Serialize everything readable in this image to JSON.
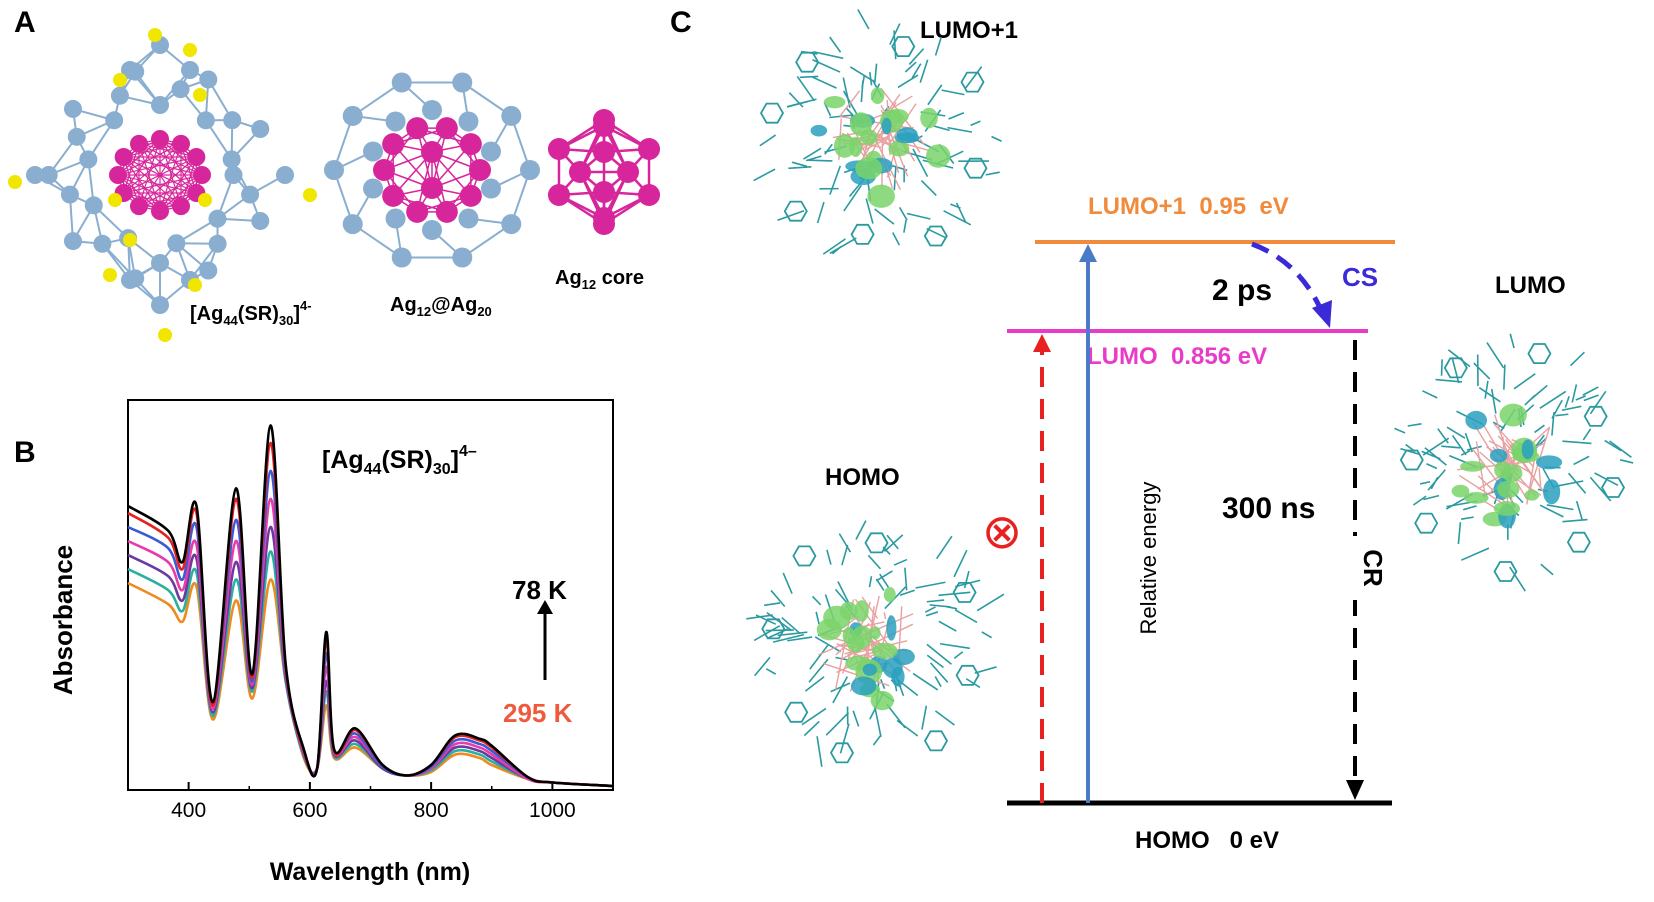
{
  "panel_a": {
    "letter": "A",
    "captions": {
      "cluster": {
        "prefix": "[Ag",
        "sub1": "44",
        "mid": "(SR)",
        "sub2": "30",
        "close": "]",
        "sup": "4-"
      },
      "shell": {
        "prefix": "Ag",
        "sub1": "12",
        "mid": "@Ag",
        "sub2": "20"
      },
      "core": {
        "prefix": "Ag",
        "sub1": "12",
        "mid": " core"
      }
    },
    "colors": {
      "silver_shell": "#8aaed0",
      "silver_core": "#d7269b",
      "sulfur": "#f0e600"
    }
  },
  "panel_b": {
    "letter": "B",
    "label": {
      "prefix": "[Ag",
      "sub1": "44",
      "mid": "(SR)",
      "sub2": "30",
      "close": "]",
      "sup": "4–"
    },
    "annotation_low": "78 K",
    "annotation_high": "295 K",
    "annotation_colors": {
      "low": "#000000",
      "high": "#f05a3c"
    }
  },
  "panel_c": {
    "letter": "C",
    "orbital_titles": {
      "lumo1": "LUMO+1",
      "lumo": "LUMO",
      "homo": "HOMO"
    },
    "levels": {
      "lumo1": {
        "label": "LUMO+1  0.95  eV",
        "energy_ev": 0.95,
        "color": "#f08a3c"
      },
      "lumo": {
        "label": "LUMO  0.856 eV",
        "energy_ev": 0.856,
        "color": "#e83cc8"
      },
      "homo": {
        "label": "HOMO   0 eV",
        "energy_ev": 0,
        "color": "#000000"
      }
    },
    "axis_label": "Relative energy",
    "transitions": {
      "cs_label": "CS",
      "cs_time": "2 ps",
      "cr_label": "CR",
      "cr_time": "300 ns",
      "forbidden_symbol": "⊗"
    },
    "colors": {
      "excitation": "#4a7ac8",
      "forbidden": "#e82020",
      "cs": "#3a2ad8",
      "cr": "#000000",
      "isosurface_pos": "#7ad46a",
      "isosurface_neg": "#2aa0c0",
      "ligand": "#2a9aa0",
      "frame": "#e8a0a0"
    }
  },
  "chart_data": {
    "type": "line",
    "title": "",
    "xlabel": "Wavelength (nm)",
    "ylabel": "Absorbance",
    "xlim": [
      300,
      1100
    ],
    "ylim": [
      0,
      1
    ],
    "x_ticks": [
      400,
      600,
      800,
      1000
    ],
    "peaks_nm": [
      366,
      413,
      478,
      535,
      627,
      675,
      840,
      900
    ],
    "temperature_range": [
      "295 K",
      "78 K"
    ],
    "series": [
      {
        "color": "#f08a1e",
        "values": [
          [
            300,
            0.58
          ],
          [
            366,
            0.52
          ],
          [
            390,
            0.47
          ],
          [
            413,
            0.57
          ],
          [
            440,
            0.19
          ],
          [
            478,
            0.53
          ],
          [
            505,
            0.25
          ],
          [
            535,
            0.59
          ],
          [
            560,
            0.3
          ],
          [
            590,
            0.08
          ],
          [
            612,
            0.05
          ],
          [
            627,
            0.23
          ],
          [
            640,
            0.08
          ],
          [
            675,
            0.11
          ],
          [
            720,
            0.05
          ],
          [
            760,
            0.03
          ],
          [
            800,
            0.04
          ],
          [
            840,
            0.09
          ],
          [
            880,
            0.08
          ],
          [
            900,
            0.06
          ],
          [
            960,
            0.02
          ],
          [
            1000,
            0.01
          ],
          [
            1100,
            0.0
          ]
        ]
      },
      {
        "color": "#2ab0a0",
        "values": [
          [
            300,
            0.62
          ],
          [
            366,
            0.56
          ],
          [
            390,
            0.5
          ],
          [
            413,
            0.61
          ],
          [
            440,
            0.2
          ],
          [
            478,
            0.59
          ],
          [
            505,
            0.27
          ],
          [
            535,
            0.67
          ],
          [
            560,
            0.3
          ],
          [
            590,
            0.085
          ],
          [
            612,
            0.05
          ],
          [
            627,
            0.27
          ],
          [
            640,
            0.085
          ],
          [
            675,
            0.12
          ],
          [
            720,
            0.05
          ],
          [
            760,
            0.03
          ],
          [
            800,
            0.045
          ],
          [
            840,
            0.1
          ],
          [
            880,
            0.09
          ],
          [
            900,
            0.07
          ],
          [
            960,
            0.02
          ],
          [
            1000,
            0.01
          ],
          [
            1100,
            0.0
          ]
        ]
      },
      {
        "color": "#6a3aa0",
        "values": [
          [
            300,
            0.66
          ],
          [
            366,
            0.6
          ],
          [
            390,
            0.53
          ],
          [
            413,
            0.65
          ],
          [
            440,
            0.21
          ],
          [
            478,
            0.64
          ],
          [
            505,
            0.28
          ],
          [
            535,
            0.74
          ],
          [
            560,
            0.31
          ],
          [
            590,
            0.09
          ],
          [
            612,
            0.05
          ],
          [
            627,
            0.3
          ],
          [
            640,
            0.09
          ],
          [
            675,
            0.13
          ],
          [
            720,
            0.05
          ],
          [
            760,
            0.03
          ],
          [
            800,
            0.05
          ],
          [
            840,
            0.11
          ],
          [
            880,
            0.1
          ],
          [
            900,
            0.08
          ],
          [
            960,
            0.02
          ],
          [
            1000,
            0.01
          ],
          [
            1100,
            0.0
          ]
        ]
      },
      {
        "color": "#e83ca8",
        "values": [
          [
            300,
            0.7
          ],
          [
            366,
            0.64
          ],
          [
            390,
            0.56
          ],
          [
            413,
            0.69
          ],
          [
            440,
            0.22
          ],
          [
            478,
            0.7
          ],
          [
            505,
            0.29
          ],
          [
            535,
            0.82
          ],
          [
            560,
            0.32
          ],
          [
            590,
            0.095
          ],
          [
            612,
            0.05
          ],
          [
            627,
            0.34
          ],
          [
            640,
            0.095
          ],
          [
            675,
            0.14
          ],
          [
            720,
            0.055
          ],
          [
            760,
            0.03
          ],
          [
            800,
            0.05
          ],
          [
            840,
            0.12
          ],
          [
            880,
            0.11
          ],
          [
            900,
            0.09
          ],
          [
            960,
            0.02
          ],
          [
            1000,
            0.01
          ],
          [
            1100,
            0.0
          ]
        ]
      },
      {
        "color": "#3a5ad8",
        "values": [
          [
            300,
            0.74
          ],
          [
            366,
            0.68
          ],
          [
            390,
            0.59
          ],
          [
            413,
            0.74
          ],
          [
            440,
            0.23
          ],
          [
            478,
            0.76
          ],
          [
            505,
            0.3
          ],
          [
            535,
            0.9
          ],
          [
            560,
            0.33
          ],
          [
            590,
            0.1
          ],
          [
            612,
            0.05
          ],
          [
            627,
            0.38
          ],
          [
            640,
            0.1
          ],
          [
            675,
            0.15
          ],
          [
            720,
            0.055
          ],
          [
            760,
            0.03
          ],
          [
            800,
            0.055
          ],
          [
            840,
            0.13
          ],
          [
            880,
            0.12
          ],
          [
            900,
            0.1
          ],
          [
            960,
            0.025
          ],
          [
            1000,
            0.01
          ],
          [
            1100,
            0.0
          ]
        ]
      },
      {
        "color": "#e82020",
        "values": [
          [
            300,
            0.78
          ],
          [
            366,
            0.71
          ],
          [
            390,
            0.62
          ],
          [
            413,
            0.78
          ],
          [
            440,
            0.23
          ],
          [
            478,
            0.82
          ],
          [
            505,
            0.31
          ],
          [
            535,
            0.98
          ],
          [
            560,
            0.34
          ],
          [
            590,
            0.1
          ],
          [
            612,
            0.05
          ],
          [
            627,
            0.42
          ],
          [
            640,
            0.1
          ],
          [
            675,
            0.16
          ],
          [
            720,
            0.06
          ],
          [
            760,
            0.03
          ],
          [
            800,
            0.06
          ],
          [
            840,
            0.14
          ],
          [
            880,
            0.13
          ],
          [
            900,
            0.11
          ],
          [
            960,
            0.025
          ],
          [
            1000,
            0.01
          ],
          [
            1100,
            0.0
          ]
        ]
      },
      {
        "color": "#000000",
        "values": [
          [
            300,
            0.8
          ],
          [
            366,
            0.73
          ],
          [
            390,
            0.64
          ],
          [
            413,
            0.8
          ],
          [
            440,
            0.24
          ],
          [
            478,
            0.85
          ],
          [
            505,
            0.32
          ],
          [
            535,
            1.03
          ],
          [
            560,
            0.35
          ],
          [
            590,
            0.105
          ],
          [
            612,
            0.05
          ],
          [
            627,
            0.44
          ],
          [
            640,
            0.105
          ],
          [
            675,
            0.165
          ],
          [
            720,
            0.06
          ],
          [
            760,
            0.03
          ],
          [
            800,
            0.06
          ],
          [
            840,
            0.145
          ],
          [
            880,
            0.135
          ],
          [
            900,
            0.115
          ],
          [
            960,
            0.025
          ],
          [
            1000,
            0.01
          ],
          [
            1100,
            0.0
          ]
        ]
      }
    ]
  }
}
